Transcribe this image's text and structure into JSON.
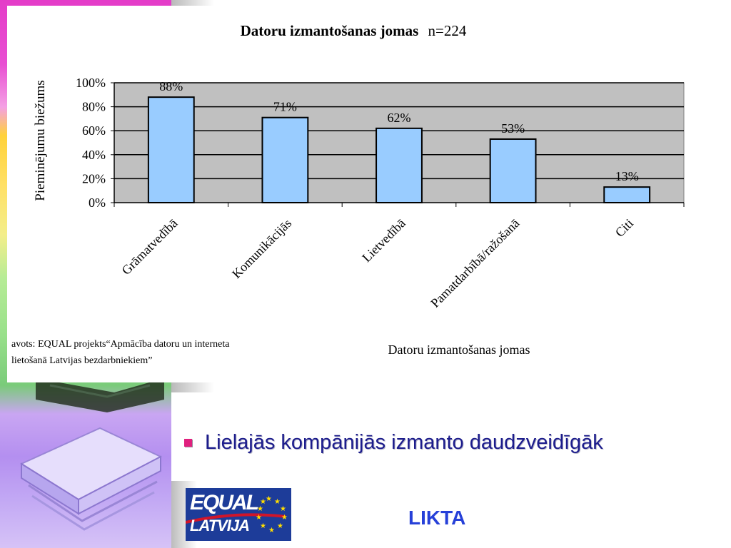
{
  "chart_data": {
    "type": "bar",
    "title": "Datoru izmantošanas jomas",
    "title_suffix": "n=224",
    "categories": [
      "Grāmatvedībā",
      "Komunikācijās",
      "Lietvedībā",
      "Pamatdarbībā/ražošanā",
      "Citi"
    ],
    "values": [
      88,
      71,
      62,
      53,
      13
    ],
    "value_labels": [
      "88%",
      "71%",
      "62%",
      "53%",
      "13%"
    ],
    "ylabel": "Pieminējumu biežums",
    "xlabel": "Datoru izmantošanas jomas",
    "ylim": [
      0,
      100
    ],
    "yticks": [
      "0%",
      "20%",
      "40%",
      "60%",
      "80%",
      "100%"
    ],
    "grid": true,
    "bar_color": "#99ccff",
    "plot_bg": "#c0c0c0"
  },
  "source": {
    "line1": "avots: EQUAL projekts“Apmācība datoru un interneta",
    "line2": "lietošanā Latvijas bezdarbniekiem”"
  },
  "bullet": {
    "text": "Lielajās kompānijās izmanto daudzveidīgāk",
    "color": "#e0207e"
  },
  "logo": {
    "equal": "EQUAL",
    "latvija": "LATVIJA"
  },
  "footer": {
    "org": "LIKTA"
  },
  "colors": {
    "accent_blue": "#2640d8",
    "text_navy": "#1c1c8c"
  }
}
